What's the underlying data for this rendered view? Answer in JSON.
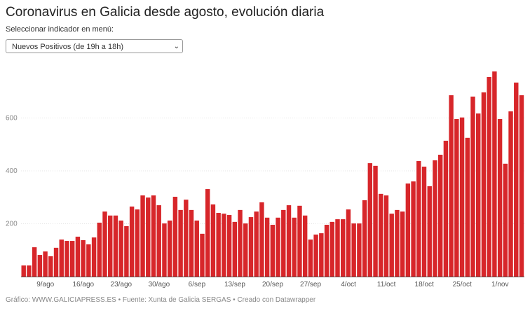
{
  "title": "Coronavirus en Galicia desde agosto, evolución diaria",
  "selector": {
    "label": "Seleccionar indicador en menú:",
    "value": "Nuevos Positivos (de 19h a 18h)"
  },
  "footer": "Gráfico: WWW.GALICIAPRESS.ES • Fuente: Xunta de Galicia SERGAS • Creado con Datawrapper",
  "chart_data": {
    "type": "bar",
    "color": "#d7262a",
    "ylim": [
      0,
      800
    ],
    "yticks": [
      200,
      400,
      600
    ],
    "grid": true,
    "xtick_labels": [
      {
        "index": 4,
        "label": "9/ago"
      },
      {
        "index": 11,
        "label": "16/ago"
      },
      {
        "index": 18,
        "label": "23/ago"
      },
      {
        "index": 25,
        "label": "30/ago"
      },
      {
        "index": 32,
        "label": "6/sep"
      },
      {
        "index": 39,
        "label": "13/sep"
      },
      {
        "index": 46,
        "label": "20/sep"
      },
      {
        "index": 53,
        "label": "27/sep"
      },
      {
        "index": 60,
        "label": "4/oct"
      },
      {
        "index": 67,
        "label": "11/oct"
      },
      {
        "index": 74,
        "label": "18/oct"
      },
      {
        "index": 81,
        "label": "25/oct"
      },
      {
        "index": 88,
        "label": "1/nov"
      }
    ],
    "values": [
      42,
      42,
      111,
      82,
      95,
      77,
      109,
      140,
      135,
      135,
      151,
      138,
      122,
      148,
      204,
      246,
      231,
      231,
      212,
      191,
      265,
      254,
      307,
      299,
      307,
      270,
      201,
      212,
      302,
      252,
      291,
      252,
      212,
      162,
      331,
      273,
      241,
      238,
      233,
      207,
      252,
      201,
      225,
      246,
      281,
      223,
      196,
      223,
      252,
      270,
      223,
      268,
      231,
      140,
      159,
      164,
      196,
      207,
      217,
      217,
      254,
      201,
      201,
      289,
      429,
      419,
      313,
      307,
      238,
      252,
      246,
      352,
      360,
      437,
      416,
      342,
      440,
      461,
      514,
      686,
      596,
      602,
      525,
      681,
      617,
      697,
      755,
      776,
      596,
      427,
      625,
      734,
      686
    ]
  }
}
